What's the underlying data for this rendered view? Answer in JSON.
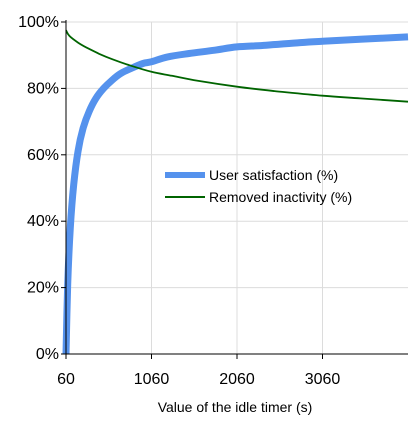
{
  "chart_data": {
    "type": "line",
    "title": "",
    "xlabel": "Value of the idle timer (s)",
    "ylabel": "",
    "xlim": [
      60,
      4060
    ],
    "ylim": [
      0,
      100
    ],
    "x_ticks": [
      60,
      1060,
      2060,
      3060
    ],
    "x_tick_labels": [
      "60",
      "1060",
      "2060",
      "3060"
    ],
    "y_ticks": [
      0,
      20,
      40,
      60,
      80,
      100
    ],
    "y_tick_labels": [
      "0%",
      "20%",
      "40%",
      "60%",
      "80%",
      "100%"
    ],
    "grid": true,
    "legend_position": "center-right",
    "series": [
      {
        "name": "User satisfaction (%)",
        "color": "#5592ED",
        "x": [
          60,
          80,
          110,
          150,
          200,
          260,
          330,
          410,
          500,
          600,
          700,
          820,
          960,
          1060,
          1250,
          1500,
          1800,
          2060,
          2400,
          2800,
          3060,
          3500,
          4060
        ],
        "values": [
          0,
          21,
          38,
          51,
          61,
          68,
          73,
          77,
          80,
          82.5,
          84.5,
          86,
          87.5,
          88,
          89.5,
          90.5,
          91.5,
          92.5,
          93,
          93.8,
          94.2,
          94.8,
          95.5
        ]
      },
      {
        "name": "Removed inactivity (%)",
        "color": "#006400",
        "x": [
          60,
          100,
          200,
          300,
          450,
          600,
          800,
          1060,
          1300,
          1600,
          2060,
          2500,
          3060,
          3500,
          4060
        ],
        "values": [
          97.5,
          95.8,
          93.8,
          92.3,
          90.4,
          88.8,
          87,
          85,
          83.8,
          82.3,
          80.5,
          79.2,
          77.8,
          77,
          76
        ]
      }
    ]
  }
}
